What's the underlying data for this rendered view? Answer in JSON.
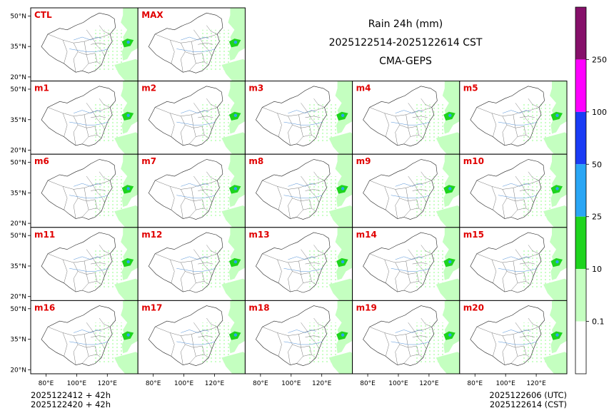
{
  "title": {
    "line1": "Rain 24h (mm)",
    "line2": "2025122514-2025122614 CST",
    "line3": "CMA-GEPS"
  },
  "footer": {
    "left_line1": "2025122412 + 42h",
    "left_line2": "2025122420 + 42h",
    "right_line1": "2025122606 (UTC)",
    "right_line2": "2025122614 (CST)"
  },
  "colors": {
    "land_light": "#c4ffc0",
    "green": "#1ed41e",
    "blue": "#2aa6f5",
    "deep_blue": "#1a3cf5",
    "magenta": "#ff00ff",
    "purple": "#86106a",
    "panel_label": "#e00000"
  },
  "chart_data": {
    "type": "heatmap",
    "panels": [
      "CTL",
      "MAX",
      "m1",
      "m2",
      "m3",
      "m4",
      "m5",
      "m6",
      "m7",
      "m8",
      "m9",
      "m10",
      "m11",
      "m12",
      "m13",
      "m14",
      "m15",
      "m16",
      "m17",
      "m18",
      "m19",
      "m20"
    ],
    "lat_ticks": [
      "50°N",
      "35°N",
      "20°N"
    ],
    "lon_ticks": [
      "80°E",
      "100°E",
      "120°E"
    ],
    "lon_range": [
      70,
      140
    ],
    "lat_range": [
      18,
      54
    ],
    "colorbar": {
      "levels": [
        0.1,
        10,
        25,
        50,
        100,
        250
      ],
      "labels": [
        "0.1",
        "10",
        "25",
        "50",
        "100",
        "250"
      ],
      "colors": [
        "#ffffff",
        "#c4ffc0",
        "#1ed41e",
        "#2aa6f5",
        "#1a3cf5",
        "#ff00ff",
        "#86106a"
      ]
    }
  }
}
